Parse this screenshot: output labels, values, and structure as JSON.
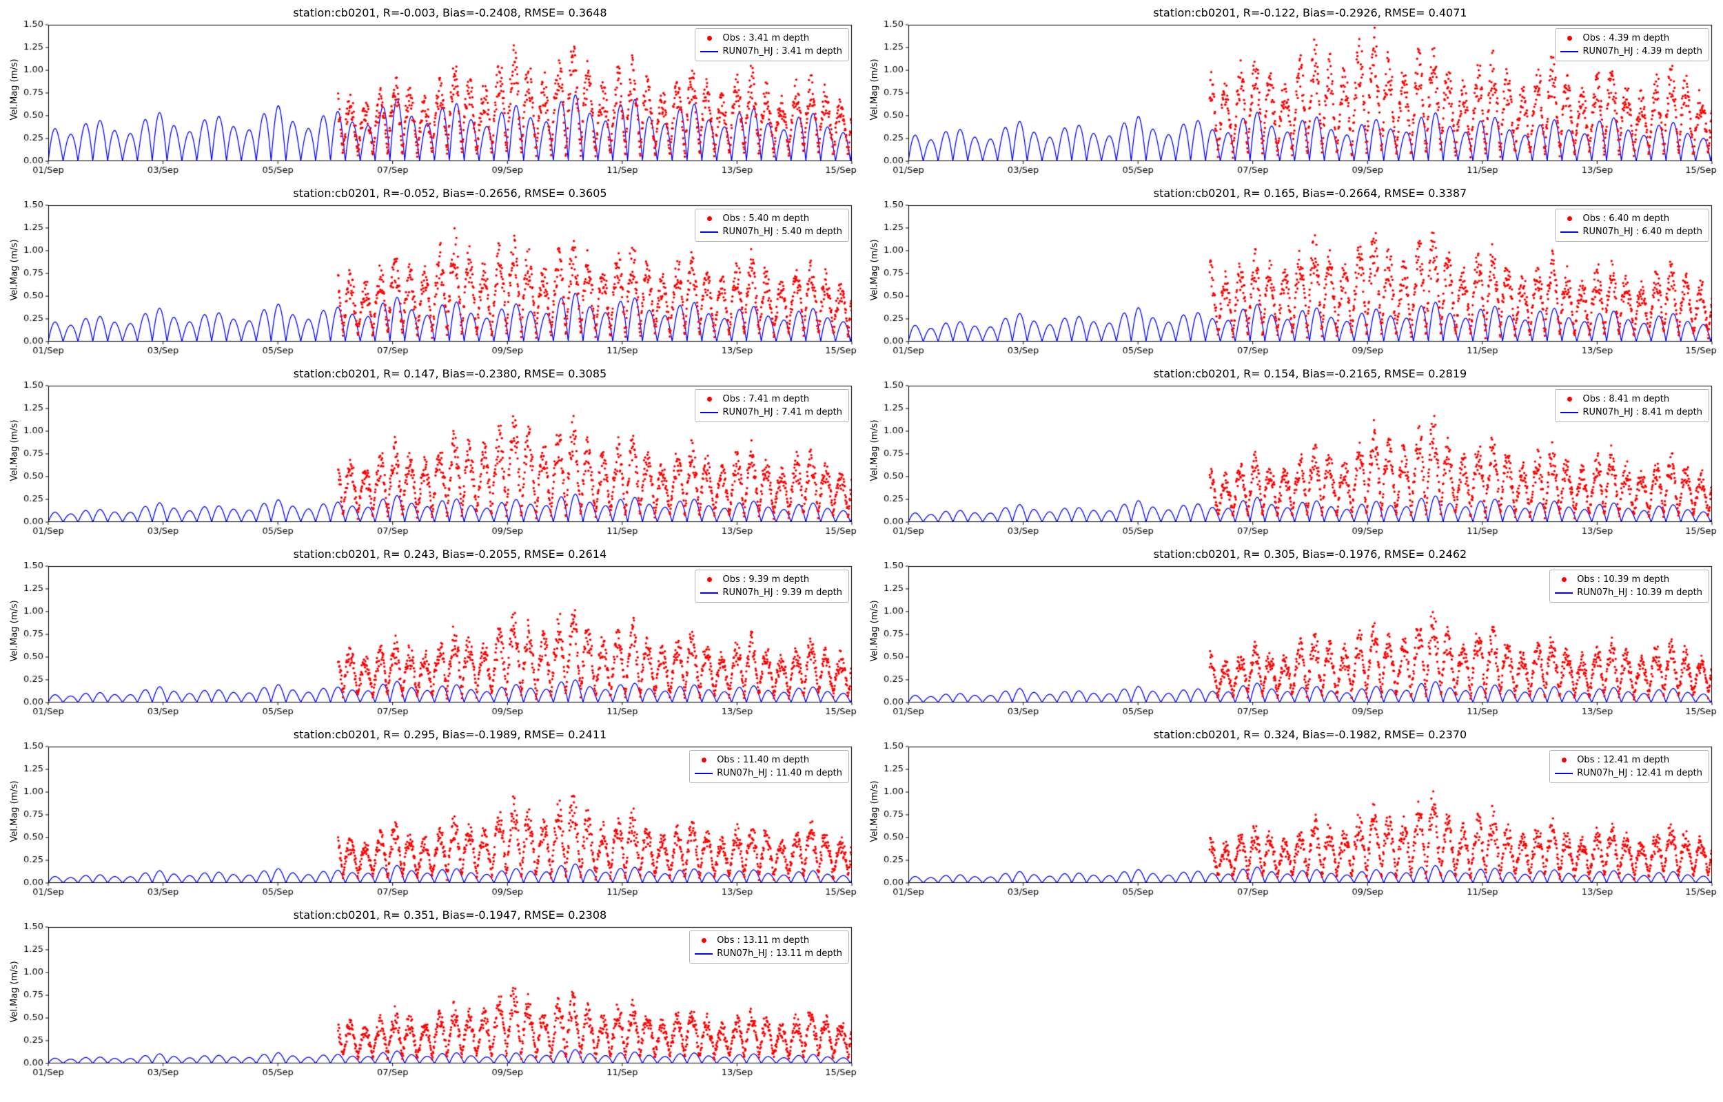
{
  "figure": {
    "background": "#ffffff",
    "ylabel": "Vel.Mag (m/s)",
    "ylim": [
      0.0,
      1.5
    ],
    "xlim_days": [
      0,
      14
    ],
    "x_start_date": "01/Sep",
    "x_end_date": "15/Sep",
    "x_tick_days": [
      0,
      2,
      4,
      6,
      8,
      10,
      12,
      14
    ],
    "x_tick_labels": [
      "01/Sep",
      "03/Sep",
      "05/Sep",
      "07/Sep",
      "09/Sep",
      "11/Sep",
      "13/Sep",
      "15/Sep"
    ],
    "y_ticks": [
      0.0,
      0.25,
      0.5,
      0.75,
      1.0,
      1.25,
      1.5
    ],
    "y_tick_labels": [
      "0.00",
      "0.25",
      "0.50",
      "0.75",
      "1.00",
      "1.25",
      "1.50"
    ],
    "obs_color": "#ff0000",
    "model_color": "#0000ff",
    "grid": false,
    "legend_position": "upper right",
    "series_names": [
      "Obs",
      "RUN07h_HJ"
    ],
    "tidal_hump_period_days": 0.2588
  },
  "chart_data": [
    {
      "type": "line",
      "title": "station:cb0201, R=-0.003, Bias=-0.2408, RMSE= 0.3648",
      "station": "cb0201",
      "R": -0.003,
      "Bias": -0.2408,
      "RMSE": 0.3648,
      "depth_m": 3.41,
      "legend_obs": "Obs : 3.41 m depth",
      "legend_model": "RUN07h_HJ : 3.41 m depth",
      "obs_start_day": 5.05,
      "model_amp": [
        0.5,
        0.45,
        0.55,
        0.5,
        0.62,
        0.55,
        0.7,
        0.65,
        0.6,
        0.75,
        0.7,
        0.65,
        0.6,
        0.55,
        0.5
      ],
      "obs_amp": [
        0,
        0,
        0,
        0,
        0,
        0.7,
        0.75,
        0.85,
        1.05,
        1.1,
        0.95,
        0.85,
        0.85,
        0.8,
        0.75
      ]
    },
    {
      "type": "line",
      "title": "station:cb0201, R=-0.122, Bias=-0.2926, RMSE= 0.4071",
      "station": "cb0201",
      "R": -0.122,
      "Bias": -0.2926,
      "RMSE": 0.4071,
      "depth_m": 4.39,
      "legend_obs": "Obs : 4.39 m depth",
      "legend_model": "RUN07h_HJ : 4.39 m depth",
      "obs_start_day": 5.25,
      "model_amp": [
        0.4,
        0.35,
        0.45,
        0.4,
        0.5,
        0.45,
        0.55,
        0.5,
        0.45,
        0.55,
        0.5,
        0.45,
        0.5,
        0.45,
        0.4
      ],
      "obs_amp": [
        0,
        0,
        0,
        0,
        0,
        1.05,
        0.95,
        1.1,
        1.25,
        1.1,
        1.0,
        0.95,
        0.9,
        0.85,
        0.9
      ]
    },
    {
      "type": "line",
      "title": "station:cb0201, R=-0.052, Bias=-0.2656, RMSE= 0.3605",
      "station": "cb0201",
      "R": -0.052,
      "Bias": -0.2656,
      "RMSE": 0.3605,
      "depth_m": 5.4,
      "legend_obs": "Obs : 5.40 m depth",
      "legend_model": "RUN07h_HJ : 5.40 m depth",
      "obs_start_day": 5.05,
      "model_amp": [
        0.3,
        0.28,
        0.38,
        0.32,
        0.42,
        0.38,
        0.5,
        0.45,
        0.4,
        0.55,
        0.5,
        0.45,
        0.4,
        0.38,
        0.35
      ],
      "obs_amp": [
        0,
        0,
        0,
        0,
        0,
        0.7,
        0.75,
        1.0,
        1.0,
        0.95,
        0.9,
        0.8,
        0.8,
        0.75,
        0.7
      ]
    },
    {
      "type": "line",
      "title": "station:cb0201, R= 0.165, Bias=-0.2664, RMSE= 0.3387",
      "station": "cb0201",
      "R": 0.165,
      "Bias": -0.2664,
      "RMSE": 0.3387,
      "depth_m": 6.4,
      "legend_obs": "Obs : 6.40 m depth",
      "legend_model": "RUN07h_HJ : 6.40 m depth",
      "obs_start_day": 5.25,
      "model_amp": [
        0.25,
        0.22,
        0.32,
        0.28,
        0.38,
        0.32,
        0.42,
        0.38,
        0.35,
        0.45,
        0.4,
        0.38,
        0.35,
        0.32,
        0.3
      ],
      "obs_amp": [
        0,
        0,
        0,
        0,
        0,
        0.85,
        0.8,
        0.95,
        1.0,
        1.05,
        0.9,
        0.8,
        0.75,
        0.7,
        0.75
      ]
    },
    {
      "type": "line",
      "title": "station:cb0201, R= 0.147, Bias=-0.2380, RMSE= 0.3085",
      "station": "cb0201",
      "R": 0.147,
      "Bias": -0.238,
      "RMSE": 0.3085,
      "depth_m": 7.41,
      "legend_obs": "Obs : 7.41 m depth",
      "legend_model": "RUN07h_HJ : 7.41 m depth",
      "obs_start_day": 5.05,
      "model_amp": [
        0.15,
        0.14,
        0.22,
        0.18,
        0.25,
        0.22,
        0.3,
        0.26,
        0.24,
        0.32,
        0.28,
        0.26,
        0.24,
        0.22,
        0.2
      ],
      "obs_amp": [
        0,
        0,
        0,
        0,
        0,
        0.65,
        0.7,
        0.8,
        1.05,
        0.95,
        0.8,
        0.7,
        0.7,
        0.65,
        0.6
      ]
    },
    {
      "type": "line",
      "title": "station:cb0201, R= 0.154, Bias=-0.2165, RMSE= 0.2819",
      "station": "cb0201",
      "R": 0.154,
      "Bias": -0.2165,
      "RMSE": 0.2819,
      "depth_m": 8.41,
      "legend_obs": "Obs : 8.41 m depth",
      "legend_model": "RUN07h_HJ : 8.41 m depth",
      "obs_start_day": 5.25,
      "model_amp": [
        0.14,
        0.13,
        0.2,
        0.16,
        0.24,
        0.2,
        0.28,
        0.24,
        0.22,
        0.3,
        0.26,
        0.24,
        0.22,
        0.2,
        0.18
      ],
      "obs_amp": [
        0,
        0,
        0,
        0,
        0,
        0.55,
        0.6,
        0.7,
        0.85,
        1.0,
        0.8,
        0.7,
        0.65,
        0.6,
        0.6
      ]
    },
    {
      "type": "line",
      "title": "station:cb0201, R= 0.243, Bias=-0.2055, RMSE= 0.2614",
      "station": "cb0201",
      "R": 0.243,
      "Bias": -0.2055,
      "RMSE": 0.2614,
      "depth_m": 9.39,
      "legend_obs": "Obs : 9.39 m depth",
      "legend_model": "RUN07h_HJ : 9.39 m depth",
      "obs_start_day": 5.05,
      "model_amp": [
        0.12,
        0.11,
        0.18,
        0.14,
        0.2,
        0.17,
        0.24,
        0.2,
        0.19,
        0.26,
        0.22,
        0.2,
        0.19,
        0.18,
        0.16
      ],
      "obs_amp": [
        0,
        0,
        0,
        0,
        0,
        0.55,
        0.55,
        0.65,
        0.8,
        0.9,
        0.75,
        0.65,
        0.6,
        0.55,
        0.6
      ]
    },
    {
      "type": "line",
      "title": "station:cb0201, R= 0.305, Bias=-0.1976, RMSE= 0.2462",
      "station": "cb0201",
      "R": 0.305,
      "Bias": -0.1976,
      "RMSE": 0.2462,
      "depth_m": 10.39,
      "legend_obs": "Obs : 10.39 m depth",
      "legend_model": "RUN07h_HJ : 10.39 m depth",
      "obs_start_day": 5.25,
      "model_amp": [
        0.11,
        0.1,
        0.16,
        0.13,
        0.18,
        0.15,
        0.22,
        0.18,
        0.17,
        0.24,
        0.2,
        0.18,
        0.17,
        0.16,
        0.15
      ],
      "obs_amp": [
        0,
        0,
        0,
        0,
        0,
        0.5,
        0.5,
        0.6,
        0.7,
        0.85,
        0.7,
        0.6,
        0.55,
        0.55,
        0.55
      ]
    },
    {
      "type": "line",
      "title": "station:cb0201, R= 0.295, Bias=-0.1989, RMSE= 0.2411",
      "station": "cb0201",
      "R": 0.295,
      "Bias": -0.1989,
      "RMSE": 0.2411,
      "depth_m": 11.4,
      "legend_obs": "Obs : 11.40 m depth",
      "legend_model": "RUN07h_HJ : 11.40 m depth",
      "obs_start_day": 5.05,
      "model_amp": [
        0.1,
        0.09,
        0.14,
        0.12,
        0.16,
        0.14,
        0.2,
        0.16,
        0.15,
        0.22,
        0.18,
        0.16,
        0.15,
        0.14,
        0.13
      ],
      "obs_amp": [
        0,
        0,
        0,
        0,
        0,
        0.45,
        0.5,
        0.55,
        0.75,
        0.8,
        0.65,
        0.55,
        0.55,
        0.5,
        0.55
      ]
    },
    {
      "type": "line",
      "title": "station:cb0201, R= 0.324, Bias=-0.1982, RMSE= 0.2370",
      "station": "cb0201",
      "R": 0.324,
      "Bias": -0.1982,
      "RMSE": 0.237,
      "depth_m": 12.41,
      "legend_obs": "Obs : 12.41 m depth",
      "legend_model": "RUN07h_HJ : 12.41 m depth",
      "obs_start_day": 5.25,
      "model_amp": [
        0.1,
        0.09,
        0.13,
        0.11,
        0.15,
        0.13,
        0.18,
        0.15,
        0.14,
        0.2,
        0.17,
        0.15,
        0.14,
        0.13,
        0.12
      ],
      "obs_amp": [
        0,
        0,
        0,
        0,
        0,
        0.45,
        0.5,
        0.55,
        0.7,
        0.8,
        0.65,
        0.55,
        0.5,
        0.5,
        0.55
      ]
    },
    {
      "type": "line",
      "title": "station:cb0201, R= 0.351, Bias=-0.1947, RMSE= 0.2308",
      "station": "cb0201",
      "R": 0.351,
      "Bias": -0.1947,
      "RMSE": 0.2308,
      "depth_m": 13.11,
      "legend_obs": "Obs : 13.11 m depth",
      "legend_model": "RUN07h_HJ : 13.11 m depth",
      "obs_start_day": 5.05,
      "model_amp": [
        0.08,
        0.07,
        0.11,
        0.09,
        0.12,
        0.1,
        0.14,
        0.12,
        0.11,
        0.16,
        0.13,
        0.12,
        0.11,
        0.1,
        0.1
      ],
      "obs_amp": [
        0,
        0,
        0,
        0,
        0,
        0.4,
        0.45,
        0.5,
        0.7,
        0.65,
        0.55,
        0.5,
        0.45,
        0.45,
        0.5
      ]
    }
  ]
}
